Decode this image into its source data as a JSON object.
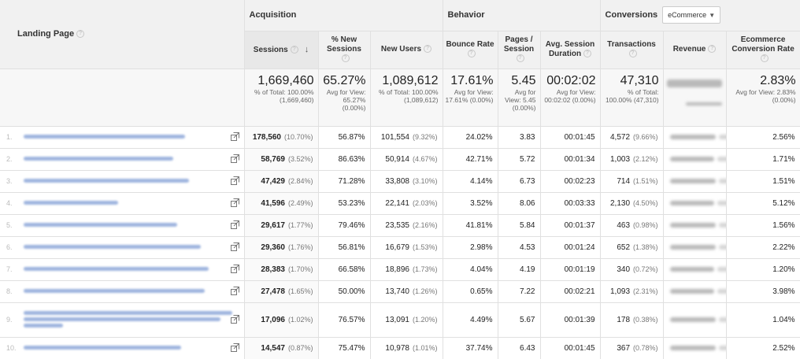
{
  "header": {
    "landing_page": "Landing Page",
    "groups": {
      "acquisition": "Acquisition",
      "behavior": "Behavior",
      "conversions": "Conversions"
    },
    "conversion_select": "eCommerce",
    "columns": {
      "sessions": "Sessions",
      "new_sessions": "% New Sessions",
      "new_users": "New Users",
      "bounce_rate": "Bounce Rate",
      "pages_session": "Pages / Session",
      "avg_duration": "Avg. Session Duration",
      "transactions": "Transactions",
      "revenue": "Revenue",
      "conv_rate": "Ecommerce Conversion Rate"
    }
  },
  "totals": {
    "sessions": "1,669,460",
    "sessions_sub": "% of Total: 100.00% (1,669,460)",
    "new_sessions": "65.27%",
    "new_sessions_sub": "Avg for View: 65.27% (0.00%)",
    "new_users": "1,089,612",
    "new_users_sub": "% of Total: 100.00% (1,089,612)",
    "bounce_rate": "17.61%",
    "bounce_rate_sub": "Avg for View: 17.61% (0.00%)",
    "pages_session": "5.45",
    "pages_session_sub": "Avg for View: 5.45 (0.00%)",
    "avg_duration": "00:02:02",
    "avg_duration_sub": "Avg for View: 00:02:02 (0.00%)",
    "transactions": "47,310",
    "transactions_sub": "% of Total: 100.00% (47,310)",
    "conv_rate": "2.83%",
    "conv_rate_sub": "Avg for View: 2.83% (0.00%)"
  },
  "rows": [
    {
      "num": "1.",
      "sessions": "178,560",
      "sessions_pct": "(10.70%)",
      "new_sessions": "56.87%",
      "new_users": "101,554",
      "new_users_pct": "(9.32%)",
      "bounce": "24.02%",
      "pages": "3.83",
      "duration": "00:01:45",
      "transactions": "4,572",
      "transactions_pct": "(9.66%)",
      "conv": "2.56%"
    },
    {
      "num": "2.",
      "sessions": "58,769",
      "sessions_pct": "(3.52%)",
      "new_sessions": "86.63%",
      "new_users": "50,914",
      "new_users_pct": "(4.67%)",
      "bounce": "42.71%",
      "pages": "5.72",
      "duration": "00:01:34",
      "transactions": "1,003",
      "transactions_pct": "(2.12%)",
      "conv": "1.71%"
    },
    {
      "num": "3.",
      "sessions": "47,429",
      "sessions_pct": "(2.84%)",
      "new_sessions": "71.28%",
      "new_users": "33,808",
      "new_users_pct": "(3.10%)",
      "bounce": "4.14%",
      "pages": "6.73",
      "duration": "00:02:23",
      "transactions": "714",
      "transactions_pct": "(1.51%)",
      "conv": "1.51%"
    },
    {
      "num": "4.",
      "sessions": "41,596",
      "sessions_pct": "(2.49%)",
      "new_sessions": "53.23%",
      "new_users": "22,141",
      "new_users_pct": "(2.03%)",
      "bounce": "3.52%",
      "pages": "8.06",
      "duration": "00:03:33",
      "transactions": "2,130",
      "transactions_pct": "(4.50%)",
      "conv": "5.12%"
    },
    {
      "num": "5.",
      "sessions": "29,617",
      "sessions_pct": "(1.77%)",
      "new_sessions": "79.46%",
      "new_users": "23,535",
      "new_users_pct": "(2.16%)",
      "bounce": "41.81%",
      "pages": "5.84",
      "duration": "00:01:37",
      "transactions": "463",
      "transactions_pct": "(0.98%)",
      "conv": "1.56%"
    },
    {
      "num": "6.",
      "sessions": "29,360",
      "sessions_pct": "(1.76%)",
      "new_sessions": "56.81%",
      "new_users": "16,679",
      "new_users_pct": "(1.53%)",
      "bounce": "2.98%",
      "pages": "4.53",
      "duration": "00:01:24",
      "transactions": "652",
      "transactions_pct": "(1.38%)",
      "conv": "2.22%"
    },
    {
      "num": "7.",
      "sessions": "28,383",
      "sessions_pct": "(1.70%)",
      "new_sessions": "66.58%",
      "new_users": "18,896",
      "new_users_pct": "(1.73%)",
      "bounce": "4.04%",
      "pages": "4.19",
      "duration": "00:01:19",
      "transactions": "340",
      "transactions_pct": "(0.72%)",
      "conv": "1.20%"
    },
    {
      "num": "8.",
      "sessions": "27,478",
      "sessions_pct": "(1.65%)",
      "new_sessions": "50.00%",
      "new_users": "13,740",
      "new_users_pct": "(1.26%)",
      "bounce": "0.65%",
      "pages": "7.22",
      "duration": "00:02:21",
      "transactions": "1,093",
      "transactions_pct": "(2.31%)",
      "conv": "3.98%"
    },
    {
      "num": "9.",
      "sessions": "17,096",
      "sessions_pct": "(1.02%)",
      "new_sessions": "76.57%",
      "new_users": "13,091",
      "new_users_pct": "(1.20%)",
      "bounce": "4.49%",
      "pages": "5.67",
      "duration": "00:01:39",
      "transactions": "178",
      "transactions_pct": "(0.38%)",
      "conv": "1.04%"
    },
    {
      "num": "10.",
      "sessions": "14,547",
      "sessions_pct": "(0.87%)",
      "new_sessions": "75.47%",
      "new_users": "10,978",
      "new_users_pct": "(1.01%)",
      "bounce": "37.74%",
      "pages": "6.43",
      "duration": "00:01:45",
      "transactions": "367",
      "transactions_pct": "(0.78%)",
      "conv": "2.52%"
    }
  ],
  "colors": {
    "link_blur": "#8ea8d9",
    "header_bg": "#f1f1f1",
    "totals_bg": "#f7f7f7"
  }
}
